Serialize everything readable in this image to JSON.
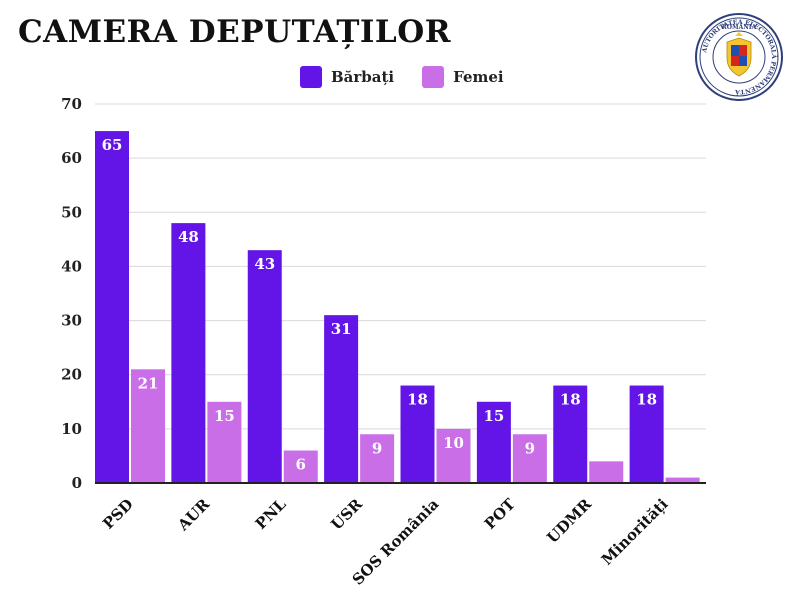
{
  "header": {
    "title": "CAMERA DEPUTAȚILOR"
  },
  "seal": {
    "text_top": "ROMÂNIA",
    "text_ring": "AUTORITATEA ELECTORALĂ PERMANENTĂ",
    "icon": "coat-of-arms-icon"
  },
  "colors": {
    "men": "#6315e8",
    "women": "#c96ee6",
    "grid": "#d9d9d9",
    "axis": "#222222"
  },
  "chart_data": {
    "type": "bar",
    "title": "CAMERA DEPUTAȚILOR",
    "categories": [
      "PSD",
      "AUR",
      "PNL",
      "USR",
      "SOS România",
      "POT",
      "UDMR",
      "Minorități"
    ],
    "series": [
      {
        "name": "Bărbați",
        "values": [
          65,
          48,
          43,
          31,
          18,
          15,
          18,
          18
        ],
        "labels": [
          "65",
          "48",
          "43",
          "31",
          "18",
          "15",
          "18",
          "18"
        ]
      },
      {
        "name": "Femei",
        "values": [
          21,
          15,
          6,
          9,
          10,
          9,
          4,
          1
        ],
        "labels": [
          "21",
          "15",
          "6",
          "9",
          "10",
          "9",
          "",
          ""
        ]
      }
    ],
    "ylim": [
      0,
      70
    ],
    "yticks": [
      0,
      10,
      20,
      30,
      40,
      50,
      60,
      70
    ],
    "xlabel": "",
    "ylabel": "",
    "grid": true,
    "legend": "top-center"
  }
}
